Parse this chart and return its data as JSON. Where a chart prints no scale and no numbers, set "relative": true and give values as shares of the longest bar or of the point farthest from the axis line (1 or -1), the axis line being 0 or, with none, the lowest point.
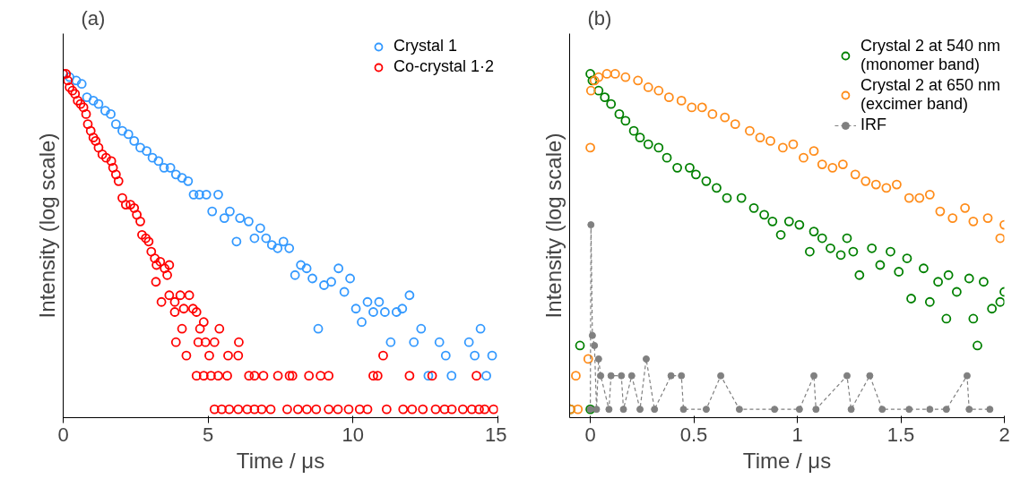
{
  "chart_data": [
    {
      "type": "scatter",
      "title": "(a)",
      "xlabel": "Time / μs",
      "ylabel": "Intensity (log scale)",
      "relative": true,
      "xlim": [
        0,
        15
      ],
      "xticks": [
        0,
        5,
        10,
        15
      ],
      "grid": false,
      "legend": "top right",
      "marker": "circle",
      "tick_labels": "x",
      "series": [
        {
          "name": "Crystal 1",
          "color": "#3399ff",
          "x": [
            0,
            0.22,
            0.45,
            0.64,
            0.82,
            1.04,
            1.22,
            1.45,
            1.64,
            1.82,
            2.04,
            2.25,
            2.45,
            2.66,
            2.88,
            3.08,
            3.29,
            3.48,
            3.7,
            3.89,
            4.1,
            4.31,
            4.5,
            4.7,
            4.94,
            5.14,
            5.35,
            5.56,
            5.75,
            5.98,
            6.1,
            6.4,
            6.6,
            6.8,
            7.0,
            7.2,
            7.4,
            7.6,
            7.8,
            8.0,
            8.2,
            8.4,
            8.6,
            8.8,
            9.0,
            9.25,
            9.5,
            9.7,
            9.9,
            10.1,
            10.3,
            10.5,
            10.7,
            10.9,
            11.1,
            11.3,
            11.5,
            11.7,
            11.95,
            12.1,
            12.35,
            12.6,
            12.98,
            13.2,
            13.4,
            14.0,
            14.2,
            14.4,
            14.6,
            14.8
          ],
          "values": [
            1.0,
            0.99,
            0.98,
            0.97,
            0.93,
            0.92,
            0.91,
            0.89,
            0.88,
            0.85,
            0.83,
            0.82,
            0.8,
            0.78,
            0.77,
            0.75,
            0.74,
            0.72,
            0.72,
            0.7,
            0.69,
            0.68,
            0.64,
            0.64,
            0.64,
            0.59,
            0.64,
            0.57,
            0.59,
            0.5,
            0.57,
            0.56,
            0.51,
            0.54,
            0.51,
            0.49,
            0.48,
            0.5,
            0.48,
            0.4,
            0.43,
            0.42,
            0.39,
            0.24,
            0.37,
            0.38,
            0.42,
            0.35,
            0.39,
            0.3,
            0.26,
            0.32,
            0.29,
            0.32,
            0.29,
            0.2,
            0.29,
            0.3,
            0.34,
            0.2,
            0.24,
            0.1,
            0.2,
            0.16,
            0.1,
            0.2,
            0.16,
            0.24,
            0.1,
            0.16
          ]
        },
        {
          "name": "Co-crystal 1·2",
          "color": "#ff0000",
          "x": [
            0,
            0.1,
            0.16,
            0.22,
            0.32,
            0.41,
            0.5,
            0.6,
            0.7,
            0.79,
            0.85,
            0.95,
            1.04,
            1.12,
            1.22,
            1.35,
            1.48,
            1.66,
            1.72,
            1.82,
            1.91,
            2.04,
            2.16,
            2.32,
            2.45,
            2.54,
            2.66,
            2.72,
            2.85,
            2.95,
            3.04,
            3.16,
            3.2,
            3.22,
            3.35,
            3.39,
            3.5,
            3.59,
            3.66,
            3.66,
            3.85,
            3.85,
            3.89,
            4.04,
            4.1,
            4.16,
            4.25,
            4.35,
            4.48,
            4.6,
            4.6,
            4.66,
            4.72,
            4.85,
            4.85,
            4.91,
            5.04,
            5.1,
            5.22,
            5.22,
            5.35,
            5.39,
            5.47,
            5.66,
            5.69,
            5.73,
            6.04,
            6.04,
            6.06,
            6.35,
            6.41,
            6.6,
            6.6,
            6.85,
            6.91,
            7.16,
            7.41,
            7.73,
            7.81,
            7.91,
            8.1,
            8.41,
            8.48,
            8.73,
            8.88,
            9.16,
            9.16,
            9.48,
            9.85,
            10.23,
            10.5,
            10.7,
            10.85,
            11.04,
            11.16,
            11.73,
            11.95,
            12.04,
            12.41,
            12.73,
            12.85,
            13.16,
            13.41,
            13.79,
            14.1,
            14.26,
            14.35,
            14.54,
            14.85
          ],
          "values": [
            1.0,
            1.0,
            0.98,
            0.96,
            0.95,
            0.94,
            0.92,
            0.91,
            0.9,
            0.88,
            0.85,
            0.83,
            0.81,
            0.8,
            0.78,
            0.76,
            0.75,
            0.74,
            0.72,
            0.7,
            0.68,
            0.63,
            0.61,
            0.61,
            0.6,
            0.58,
            0.56,
            0.52,
            0.51,
            0.5,
            0.47,
            0.45,
            0.38,
            0.43,
            0.44,
            0.32,
            0.42,
            0.4,
            0.43,
            0.34,
            0.32,
            0.29,
            0.2,
            0.34,
            0.24,
            0.3,
            0.16,
            0.34,
            0.3,
            0.29,
            0.1,
            0.2,
            0.24,
            0.26,
            0.1,
            0.2,
            0.16,
            0.1,
            0.2,
            0,
            0.1,
            0.24,
            0,
            0.1,
            0.16,
            0,
            0.16,
            0,
            0.2,
            0,
            0.1,
            0.1,
            0,
            0,
            0.1,
            0,
            0.1,
            0,
            0.1,
            0.1,
            0,
            0,
            0.1,
            0,
            0.1,
            0.1,
            0,
            0,
            0,
            0,
            0,
            0.1,
            0.1,
            0.16,
            0,
            0,
            0.1,
            0,
            0,
            0.1,
            0,
            0,
            0,
            0,
            0,
            0.1,
            0,
            0,
            0
          ]
        }
      ]
    },
    {
      "type": "scatter",
      "title": "(b)",
      "xlabel": "Time / μs",
      "ylabel": "Intensity (log scale)",
      "relative": true,
      "xlim": [
        -0.1,
        2
      ],
      "xticks": [
        0,
        0.5,
        1,
        1.5,
        2
      ],
      "grid": false,
      "legend": "top right",
      "marker": "circle",
      "tick_labels": "x",
      "series": [
        {
          "name": "Crystal 2 at 540 nm\n(monomer band)",
          "color": "#008000",
          "x": [
            -0.096,
            -0.05,
            0,
            0,
            0.01,
            0.04,
            0.07,
            0.1,
            0.14,
            0.17,
            0.21,
            0.24,
            0.28,
            0.33,
            0.37,
            0.42,
            0.48,
            0.51,
            0.56,
            0.61,
            0.66,
            0.73,
            0.79,
            0.84,
            0.88,
            0.92,
            0.96,
            1.01,
            1.06,
            1.08,
            1.12,
            1.16,
            1.21,
            1.24,
            1.27,
            1.3,
            1.36,
            1.4,
            1.45,
            1.49,
            1.53,
            1.55,
            1.61,
            1.64,
            1.68,
            1.72,
            1.73,
            1.77,
            1.83,
            1.85,
            1.87,
            1.9,
            1.94,
            1.98,
            2.0
          ],
          "values": [
            0,
            0.19,
            0,
            1.0,
            0.98,
            0.95,
            0.93,
            0.91,
            0.88,
            0.86,
            0.83,
            0.81,
            0.79,
            0.78,
            0.75,
            0.72,
            0.72,
            0.7,
            0.68,
            0.66,
            0.63,
            0.63,
            0.6,
            0.58,
            0.56,
            0.52,
            0.56,
            0.55,
            0.47,
            0.53,
            0.51,
            0.48,
            0.46,
            0.51,
            0.47,
            0.4,
            0.48,
            0.43,
            0.47,
            0.41,
            0.45,
            0.33,
            0.42,
            0.32,
            0.38,
            0.27,
            0.4,
            0.35,
            0.39,
            0.27,
            0.19,
            0.38,
            0.3,
            0.32,
            0.35
          ]
        },
        {
          "name": "Crystal 2 at 650 nm\n(excimer band)",
          "color": "#ff8c1a",
          "x": [
            -0.096,
            -0.07,
            -0.06,
            -0.01,
            0,
            0.003,
            0.02,
            0.04,
            0.08,
            0.12,
            0.17,
            0.23,
            0.28,
            0.33,
            0.38,
            0.44,
            0.49,
            0.54,
            0.59,
            0.65,
            0.7,
            0.77,
            0.82,
            0.87,
            0.93,
            0.98,
            1.03,
            1.08,
            1.12,
            1.17,
            1.22,
            1.28,
            1.33,
            1.38,
            1.43,
            1.48,
            1.54,
            1.59,
            1.64,
            1.69,
            1.75,
            1.81,
            1.85,
            1.92,
            1.98,
            2.0
          ],
          "values": [
            0,
            0.1,
            0,
            0.15,
            0.78,
            0.95,
            0.98,
            0.99,
            1.0,
            1.0,
            0.99,
            0.98,
            0.96,
            0.95,
            0.93,
            0.92,
            0.9,
            0.9,
            0.88,
            0.87,
            0.85,
            0.83,
            0.81,
            0.8,
            0.78,
            0.79,
            0.75,
            0.77,
            0.73,
            0.72,
            0.73,
            0.7,
            0.68,
            0.67,
            0.66,
            0.67,
            0.63,
            0.63,
            0.64,
            0.59,
            0.57,
            0.6,
            0.56,
            0.57,
            0.51,
            0.55
          ]
        },
        {
          "name": "IRF",
          "type": "line",
          "color": "#808080",
          "line_style": "dashed",
          "marker": "circle",
          "x": [
            0,
            0.003,
            0.01,
            0.02,
            0.03,
            0.04,
            0.05,
            0.09,
            0.1,
            0.15,
            0.16,
            0.2,
            0.24,
            0.27,
            0.31,
            0.39,
            0.44,
            0.45,
            0.56,
            0.63,
            0.72,
            0.89,
            1.01,
            1.08,
            1.09,
            1.24,
            1.26,
            1.35,
            1.41,
            1.54,
            1.64,
            1.72,
            1.82,
            1.83,
            1.93
          ],
          "values": [
            0,
            0.55,
            0.22,
            0.19,
            0,
            0.15,
            0.1,
            0,
            0.1,
            0.1,
            0,
            0.1,
            0,
            0.15,
            0,
            0.1,
            0.1,
            0,
            0,
            0.1,
            0,
            0,
            0,
            0.1,
            0,
            0.1,
            0,
            0.1,
            0,
            0,
            0,
            0,
            0.1,
            0,
            0
          ]
        }
      ]
    }
  ]
}
